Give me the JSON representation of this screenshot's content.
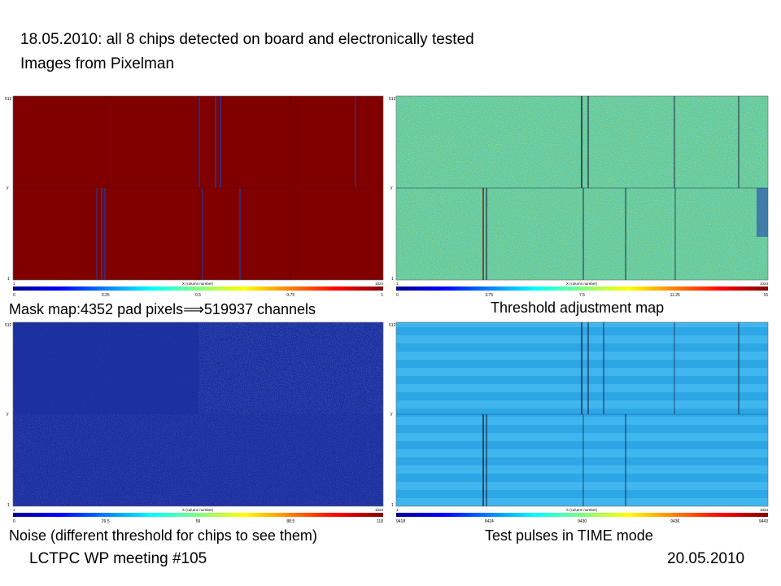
{
  "heading": {
    "line1": "18.05.2010: all 8 chips detected on board and electronically tested",
    "line2": "Images from Pixelman"
  },
  "panels": [
    {
      "id": "mask",
      "caption": "Mask map:4352 pad pixels⟹519937 channels",
      "y_top": "512",
      "y_bottom": "1",
      "y_label": "y",
      "x_left": "1",
      "x_right": "1024",
      "x_label": "X (column number)",
      "scale_ticks": [
        "0",
        "0.25",
        "0.5",
        "0.75",
        "1"
      ]
    },
    {
      "id": "threshold",
      "caption": "Threshold adjustment map",
      "y_top": "512",
      "y_bottom": "1",
      "y_label": "y",
      "x_left": "1",
      "x_right": "1024",
      "x_label": "X (column number)",
      "scale_ticks": [
        "0",
        "3.75",
        "7.5",
        "11.25",
        "15"
      ]
    },
    {
      "id": "noise",
      "caption": "Noise (different threshold for chips to see them)",
      "y_top": "512",
      "y_bottom": "1",
      "y_label": "y",
      "x_left": "1",
      "x_right": "1024",
      "x_label": "X (column number)",
      "scale_ticks": [
        "0",
        "29.5",
        "59",
        "88.5",
        "118"
      ]
    },
    {
      "id": "testpulse",
      "caption": "Test pulses in TIME mode",
      "y_top": "512",
      "y_bottom": "1",
      "y_label": "y",
      "x_left": "1",
      "x_right": "1024",
      "x_label": "X (column number)",
      "scale_ticks": [
        "9418",
        "9424",
        "9430",
        "9436",
        "9443"
      ]
    }
  ],
  "footer": {
    "left": "LCTPC WP meeting #105",
    "right": "20.05.2010"
  },
  "colors": {
    "mask_fill": "#800000",
    "mask_line": "#1a3fb0",
    "noise_fill": "#1a2d9e",
    "testpulse_fill": "#39b5ee",
    "dark_line": "#1f2a44"
  }
}
